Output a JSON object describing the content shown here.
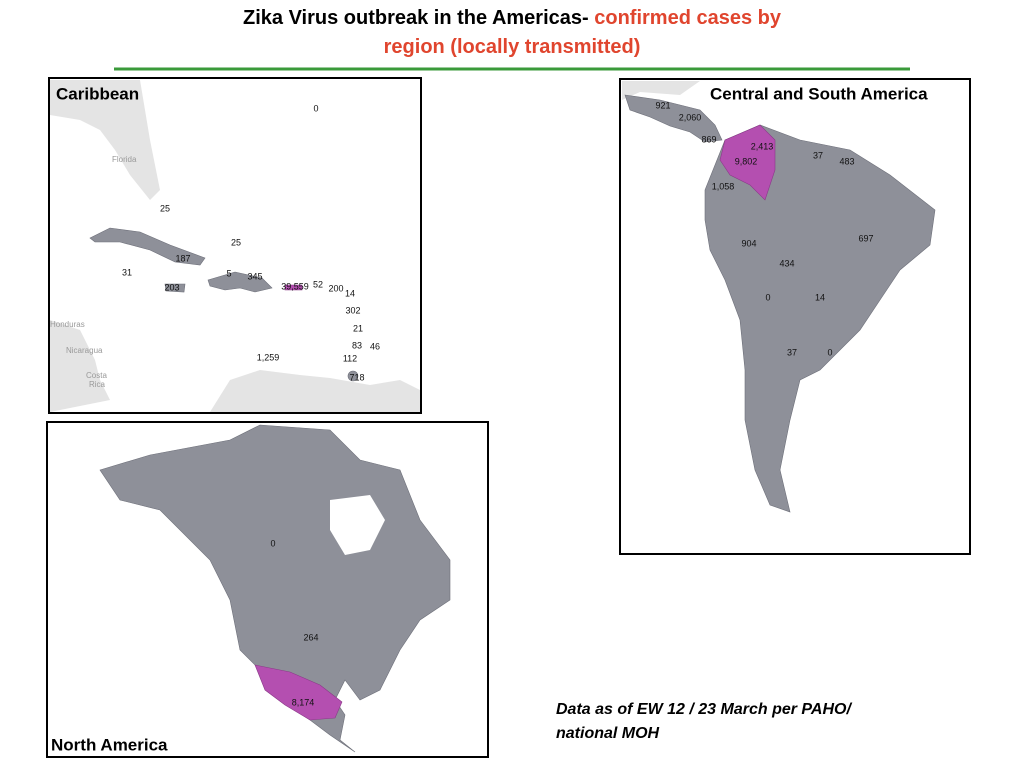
{
  "title": {
    "main": "Zika Virus outbreak in the Americas-",
    "highlight_lines": [
      "confirmed cases by",
      "region (locally transmitted)"
    ]
  },
  "caribbean": {
    "name": "Caribbean",
    "place_names": [
      "Florida",
      "Honduras",
      "Nicaragua",
      "Costa",
      "Rica"
    ],
    "labels": [
      "0",
      "25",
      "25",
      "187",
      "31",
      "5",
      "345",
      "203",
      "39,559",
      "52",
      "200",
      "14",
      "302",
      "21",
      "83",
      "46",
      "112",
      "1,259",
      "718"
    ]
  },
  "central_south": {
    "name": "Central and South America",
    "labels": [
      "921",
      "2,060",
      "869",
      "2,413",
      "37",
      "483",
      "9,802",
      "1,058",
      "697",
      "904",
      "434",
      "0",
      "14",
      "37",
      "0"
    ]
  },
  "north_america": {
    "name": "North America",
    "labels": [
      "0",
      "264",
      "8,174"
    ]
  },
  "footnote": [
    "Data as of EW 12 / 23 March per PAHO/",
    "national MOH"
  ]
}
